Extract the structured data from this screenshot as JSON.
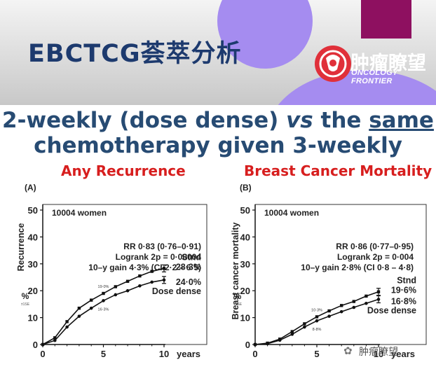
{
  "header": {
    "title": "EBCTCG荟萃分析",
    "logo_text": "肿瘤瞭望",
    "logo_subtitle": "ONCOLOGY FRONTIER",
    "colors": {
      "purple": "#a58cf0",
      "magenta": "#8e1060",
      "logo_red": "#e0303a",
      "title": "#1d3a6e"
    }
  },
  "headline": {
    "line1_part1": "2-weekly (dose dense) ",
    "line1_vs": "vs",
    "line1_part2": " the ",
    "line1_same": "same",
    "line2": "chemotherapy given 3-weekly"
  },
  "watermark": "肿瘤瞭望",
  "chart_data": [
    {
      "type": "line",
      "panel_label": "(A)",
      "title": "Any Recurrence",
      "population": "10004 women",
      "stats": [
        "RR 0·83 (0·76–0·91)",
        "Logrank 2p = 0·00004",
        "10–y gain 4·3% (CI 2·2 – 6·5)"
      ],
      "ylabel": "Recurrence",
      "ylabel_unit": "%",
      "ylabel_note": "±1SE",
      "xlabel": "years",
      "xlim": [
        0,
        10
      ],
      "ylim": [
        0,
        50
      ],
      "xticks": [
        0,
        5,
        10
      ],
      "yticks": [
        0,
        10,
        20,
        30,
        40,
        50
      ],
      "x": [
        0,
        1,
        2,
        3,
        4,
        5,
        6,
        7,
        8,
        9,
        10
      ],
      "series": [
        {
          "label": "Stnd",
          "end_value": "28·3%",
          "values": [
            0,
            2.5,
            8.5,
            13.5,
            16.5,
            19.0,
            21.5,
            23.5,
            25.5,
            27.2,
            28.3
          ]
        },
        {
          "label": "Dose dense",
          "end_value": "24·0%",
          "values": [
            0,
            1.5,
            6.5,
            10.5,
            13.5,
            16.3,
            18.5,
            20.0,
            21.8,
            23.2,
            24.0
          ]
        }
      ],
      "annotations": [
        {
          "text": "19·0%",
          "x": 5,
          "series": 0
        },
        {
          "text": "16·3%",
          "x": 5,
          "series": 1
        }
      ]
    },
    {
      "type": "line",
      "panel_label": "(B)",
      "title": "Breast Cancer Mortality",
      "population": "10004 women",
      "stats": [
        "RR 0·86 (0·77–0·95)",
        "Logrank 2p = 0·004",
        "10–y gain 2·8% (CI 0·8 – 4·8)"
      ],
      "ylabel": "Breast cancer mortality",
      "ylabel_unit": "%",
      "ylabel_note": "±1SE",
      "xlabel": "years",
      "xlim": [
        0,
        10
      ],
      "ylim": [
        0,
        50
      ],
      "xticks": [
        0,
        5,
        10
      ],
      "yticks": [
        0,
        10,
        20,
        30,
        40,
        50
      ],
      "x": [
        0,
        1,
        2,
        3,
        4,
        5,
        6,
        7,
        8,
        9,
        10
      ],
      "series": [
        {
          "label": "Stnd",
          "end_value": "19·6%",
          "values": [
            0,
            0.5,
            2.0,
            4.8,
            7.7,
            10.3,
            12.5,
            14.5,
            16.0,
            18.0,
            19.6
          ]
        },
        {
          "label": "Dose dense",
          "end_value": "16·8%",
          "values": [
            0,
            0.3,
            1.6,
            3.8,
            6.5,
            8.8,
            10.5,
            12.2,
            13.8,
            15.3,
            16.8
          ]
        }
      ],
      "annotations": [
        {
          "text": "10·3%",
          "x": 5,
          "series": 0
        },
        {
          "text": "8·8%",
          "x": 5,
          "series": 1
        }
      ]
    }
  ]
}
